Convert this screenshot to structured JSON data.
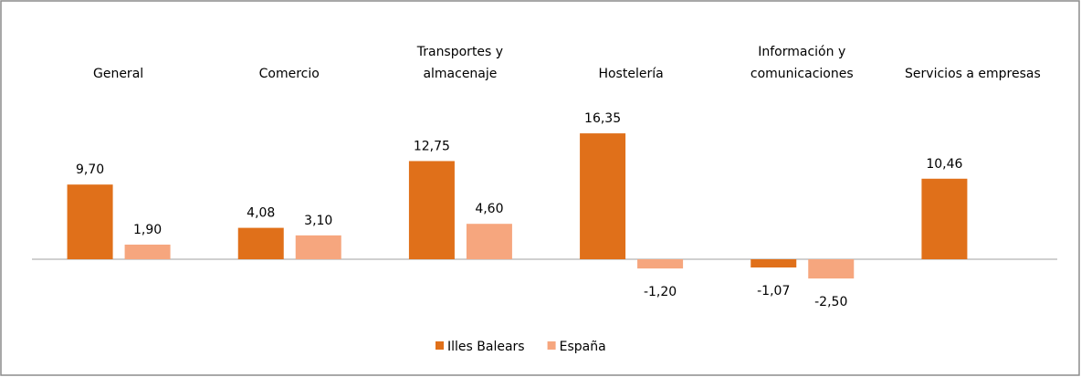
{
  "chart_data": {
    "type": "bar",
    "categories": [
      [
        "General"
      ],
      [
        "Comercio"
      ],
      [
        "Transportes y",
        "almacenaje"
      ],
      [
        "Hostelería"
      ],
      [
        "Información y",
        "comunicaciones"
      ],
      [
        "Servicios a empresas"
      ]
    ],
    "series": [
      {
        "name": "Illes Balears",
        "color": "#e0701a",
        "values": [
          9.7,
          4.08,
          12.75,
          16.35,
          -1.07,
          10.46
        ],
        "value_labels": [
          "9,70",
          "4,08",
          "12,75",
          "16,35",
          "-1,07",
          "10,46"
        ]
      },
      {
        "name": "España",
        "color": "#f6a67e",
        "values": [
          1.9,
          3.1,
          4.6,
          -1.2,
          -2.5,
          null
        ],
        "value_labels": [
          "1,90",
          "3,10",
          "4,60",
          "-1,20",
          "-2,50",
          null
        ]
      }
    ],
    "legend": "bottom"
  }
}
